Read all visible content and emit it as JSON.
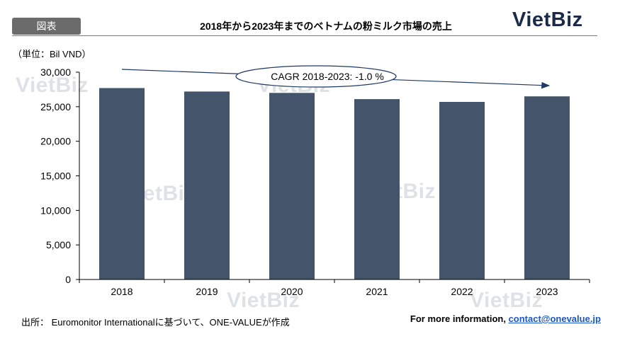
{
  "header": {
    "tag": "図表",
    "title": "2018年から2023年までのベトナムの粉ミルク市場の売上",
    "logo": "VietBiz"
  },
  "unit_label": "（単位：Bil VND）",
  "watermark_text": "VietBiz",
  "chart_data": {
    "type": "bar",
    "categories": [
      "2018",
      "2019",
      "2020",
      "2021",
      "2022",
      "2023"
    ],
    "values": [
      27700,
      27200,
      27000,
      26100,
      25700,
      26500
    ],
    "ylim": [
      0,
      30000
    ],
    "yticks": [
      0,
      5000,
      10000,
      15000,
      20000,
      25000,
      30000
    ],
    "ytick_labels": [
      "0",
      "5,000",
      "10,000",
      "15,000",
      "20,000",
      "25,000",
      "30,000"
    ],
    "bar_color": "#44546a",
    "grid": false,
    "annotation": "CAGR 2018-2023: -1.0 %"
  },
  "footer": {
    "source": "出所： Euromonitor Internationalに基づいて、ONE-VALUEが作成",
    "info_prefix": "For more information, ",
    "info_link": "contact@onevalue.jp"
  }
}
